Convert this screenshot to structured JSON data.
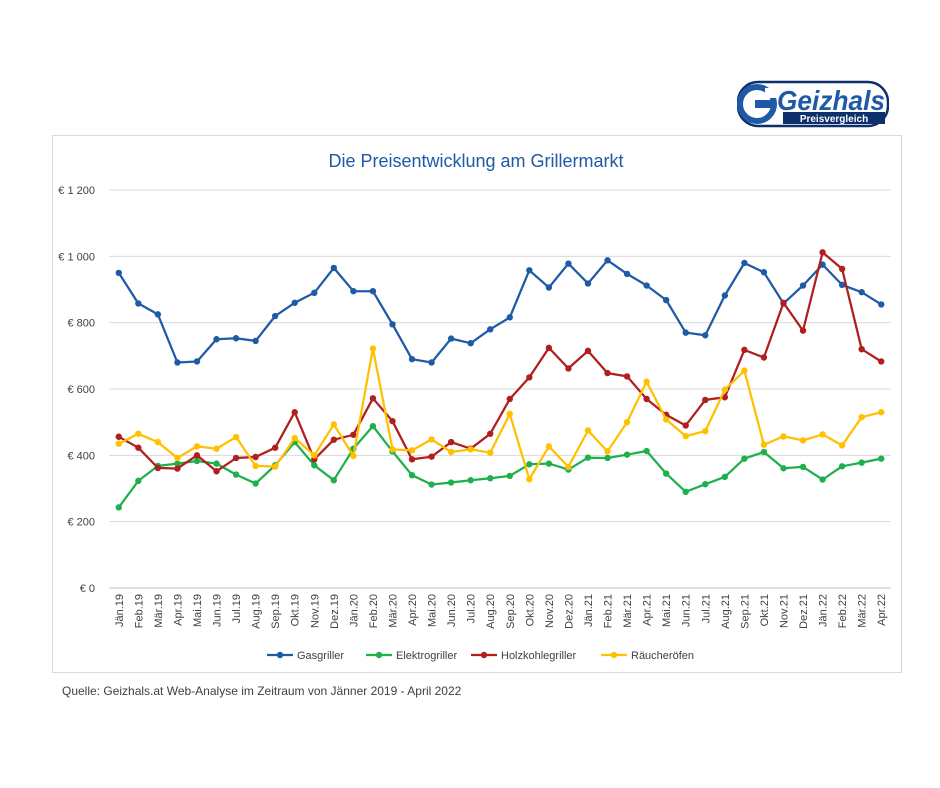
{
  "logo": {
    "brand": "Geizhals",
    "tagline": "Preisvergleich",
    "colors": {
      "primary": "#1f5aa6",
      "dark": "#0d2f6b"
    }
  },
  "source_note": "Quelle: Geizhals.at Web-Analyse im Zeitraum von Jänner 2019 - April 2022",
  "chart_data": {
    "type": "line",
    "title": "Die Preisentwicklung am Grillermarkt",
    "xlabel": "",
    "ylabel": "",
    "ylim": [
      0,
      1200
    ],
    "yticks": [
      0,
      200,
      400,
      600,
      800,
      1000,
      1200
    ],
    "ytick_labels": [
      "€ 0",
      "€ 200",
      "€ 400",
      "€ 600",
      "€ 800",
      "€ 1 000",
      "€ 1 200"
    ],
    "grid": true,
    "legend": "bottom",
    "categories": [
      "Jän.19",
      "Feb.19",
      "Mär.19",
      "Apr.19",
      "Mai.19",
      "Jun.19",
      "Jul.19",
      "Aug.19",
      "Sep.19",
      "Okt.19",
      "Nov.19",
      "Dez.19",
      "Jän.20",
      "Feb.20",
      "Mär.20",
      "Apr.20",
      "Mai.20",
      "Jun.20",
      "Jul.20",
      "Aug.20",
      "Sep.20",
      "Okt.20",
      "Nov.20",
      "Dez.20",
      "Jän.21",
      "Feb.21",
      "Mär.21",
      "Apr.21",
      "Mai.21",
      "Jun.21",
      "Jul.21",
      "Aug.21",
      "Sep.21",
      "Okt.21",
      "Nov.21",
      "Dez.21",
      "Jän.22",
      "Feb.22",
      "Mär.22",
      "Apr.22"
    ],
    "series": [
      {
        "name": "Gasgriller",
        "color": "#1f5aa6",
        "values": [
          950,
          858,
          825,
          680,
          683,
          750,
          753,
          745,
          820,
          860,
          890,
          965,
          895,
          895,
          795,
          690,
          680,
          752,
          738,
          780,
          816,
          958,
          906,
          978,
          918,
          988,
          947,
          912,
          868,
          770,
          762,
          882,
          980,
          952,
          858,
          912,
          975,
          914,
          892,
          855
        ]
      },
      {
        "name": "Elektrogriller",
        "color": "#1fb04c",
        "values": [
          243,
          323,
          368,
          375,
          383,
          375,
          342,
          315,
          370,
          440,
          370,
          325,
          420,
          488,
          412,
          340,
          312,
          318,
          325,
          331,
          338,
          373,
          375,
          357,
          393,
          392,
          402,
          413,
          345,
          290,
          313,
          335,
          390,
          410,
          361,
          365,
          327,
          367,
          378,
          390
        ]
      },
      {
        "name": "Holzkohlegriller",
        "color": "#b01e1e",
        "values": [
          456,
          423,
          362,
          360,
          400,
          352,
          392,
          395,
          423,
          530,
          388,
          447,
          462,
          572,
          503,
          388,
          396,
          440,
          420,
          465,
          570,
          635,
          724,
          662,
          715,
          648,
          638,
          570,
          522,
          490,
          567,
          575,
          718,
          695,
          860,
          776,
          1012,
          962,
          720,
          683
        ]
      },
      {
        "name": "Räucheröfen",
        "color": "#ffc000",
        "values": [
          435,
          465,
          440,
          392,
          427,
          420,
          455,
          368,
          366,
          452,
          400,
          493,
          398,
          722,
          418,
          415,
          448,
          410,
          418,
          408,
          525,
          328,
          427,
          365,
          475,
          412,
          500,
          622,
          508,
          458,
          473,
          598,
          655,
          432,
          457,
          445,
          463,
          430,
          515,
          530
        ]
      }
    ]
  }
}
